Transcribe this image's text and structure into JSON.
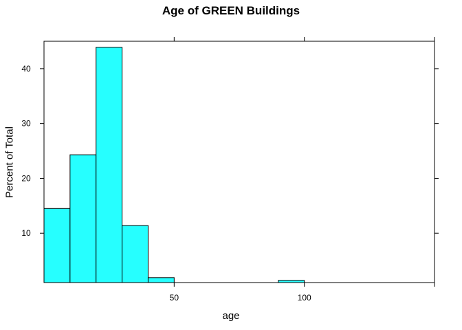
{
  "chart_data": {
    "type": "bar",
    "title": "Age of GREEN Buildings",
    "xlabel": "age",
    "ylabel": "Percent of Total",
    "bins": [
      {
        "start": 0,
        "end": 10,
        "value": 14.5
      },
      {
        "start": 10,
        "end": 20,
        "value": 24.3
      },
      {
        "start": 20,
        "end": 30,
        "value": 43.9
      },
      {
        "start": 30,
        "end": 40,
        "value": 11.4
      },
      {
        "start": 40,
        "end": 50,
        "value": 1.9
      },
      {
        "start": 90,
        "end": 100,
        "value": 1.4
      }
    ],
    "xlim": [
      0,
      150
    ],
    "ylim": [
      1,
      45
    ],
    "xticks": [
      50,
      100
    ],
    "yticks": [
      10,
      20,
      30,
      40
    ],
    "bar_color": "#26ffff",
    "grid": false
  }
}
